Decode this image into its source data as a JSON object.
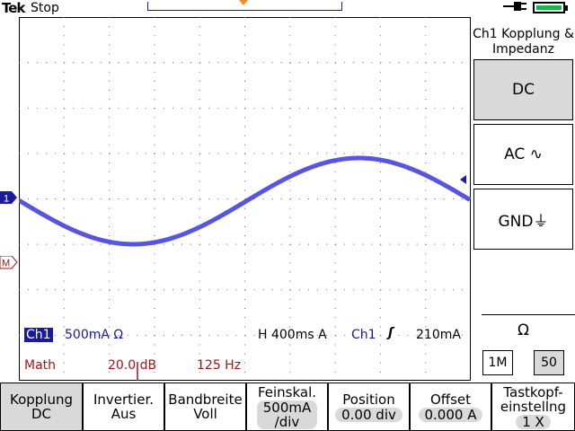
{
  "status_bar": {
    "brand": "Tek",
    "acquisition_state": "Stop",
    "power_icon": "plug-icon",
    "battery_icon": "battery-icon",
    "battery_color": "#1db34a"
  },
  "waveform": {
    "ch1_marker": "1",
    "math_marker": "M",
    "trace_color": "#5555e0",
    "math_color": "#a01414"
  },
  "readouts": {
    "ch1_badge": "Ch1",
    "ch1_scale": "500mA Ω",
    "timebase": "H 400ms  A",
    "trigger_source": "Ch1",
    "trigger_slope": "ʃ",
    "trigger_level": "210mA",
    "math_label": "Math",
    "math_scale": "20.0 dB",
    "math_frequency": "125 Hz"
  },
  "side_menu": {
    "title": "Ch1 Kopplung & Impedanz",
    "options": [
      {
        "label": "DC",
        "selected": true
      },
      {
        "label": "AC ∿",
        "selected": false
      },
      {
        "label": "GND⏚",
        "selected": false
      }
    ],
    "impedance_symbol": "Ω",
    "impedance_options": [
      {
        "label": "1M",
        "selected": false
      },
      {
        "label": "50",
        "selected": true
      }
    ]
  },
  "bottom_menu": [
    {
      "label": "Kopplung",
      "value": "DC",
      "selected": true
    },
    {
      "label": "Invertier.",
      "value": "Aus",
      "selected": false
    },
    {
      "label": "Bandbreite",
      "value": "Voll",
      "selected": false
    },
    {
      "label": "Feinskal.",
      "value": "500mA",
      "value2": "/div",
      "selected": false
    },
    {
      "label": "Position",
      "value": "0.00 div",
      "selected": false
    },
    {
      "label": "Offset",
      "value": "0.000 A",
      "selected": false
    },
    {
      "label": "Tastkopf-",
      "label2": "einstellng",
      "value": "1 X",
      "selected": false
    }
  ]
}
